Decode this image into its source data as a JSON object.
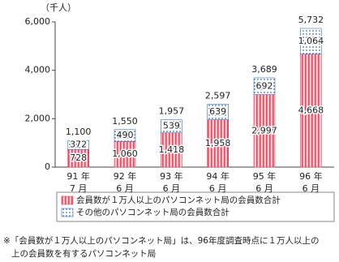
{
  "chart_data": {
    "type": "stacked-bar",
    "unit": "（千人）",
    "categories": [
      [
        "91 年",
        "7 月"
      ],
      [
        "92 年",
        "6 月"
      ],
      [
        "93 年",
        "6 月"
      ],
      [
        "94 年",
        "6 月"
      ],
      [
        "95 年",
        "6 月"
      ],
      [
        "96 年",
        "6 月"
      ]
    ],
    "series": [
      {
        "name": "会員数が１万人以上のパソコンネット局の会員数合計",
        "color": "#e8475f",
        "values": [
          728,
          1060,
          1418,
          1958,
          2997,
          4668
        ],
        "value_labels": [
          "728",
          "1,060",
          "1,418",
          "1,958",
          "2,997",
          "4,668"
        ]
      },
      {
        "name": "その他のパソコンネット局の会員数合計",
        "color": "#3a6fd0",
        "values": [
          372,
          490,
          539,
          639,
          692,
          1064
        ],
        "value_labels": [
          "372",
          "490",
          "539",
          "639",
          "692",
          "1,064"
        ]
      }
    ],
    "totals": {
      "values": [
        1100,
        1550,
        1957,
        2597,
        3689,
        5732
      ],
      "value_labels": [
        "1,100",
        "1,550",
        "1,957",
        "2,597",
        "3,689",
        "5,732"
      ]
    },
    "ylim": [
      0,
      6000
    ],
    "yticks": [
      0,
      {
        "value": 2000,
        "label": "2,000"
      },
      {
        "value": 4000,
        "label": "4,000"
      },
      {
        "value": 6000,
        "label": "6,000"
      }
    ],
    "note": [
      "※「会員数が１万人以上のパソコンネット局」は、96年度調査時点に１万人以上の",
      "上の会員数を有するパソコンネット局"
    ]
  }
}
